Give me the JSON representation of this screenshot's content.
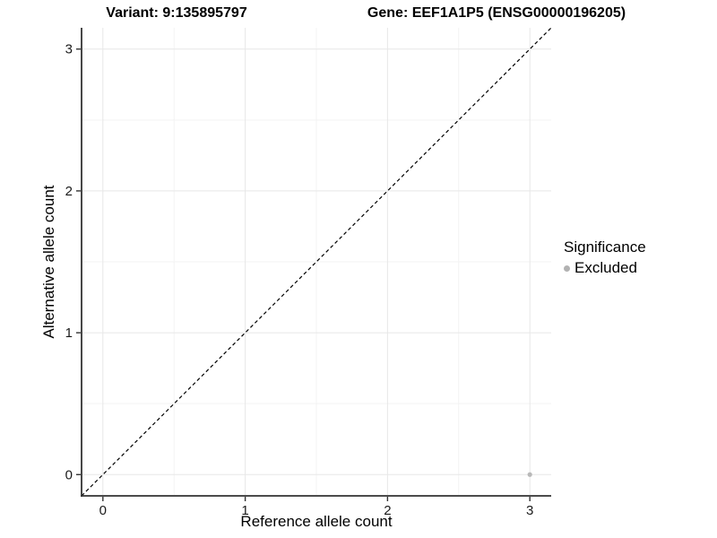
{
  "chart_data": {
    "type": "scatter",
    "titles": [
      "Variant: 9:135895797",
      "Gene: EEF1A1P5 (ENSG00000196205)"
    ],
    "xlabel": "Reference allele count",
    "ylabel": "Alternative allele count",
    "xlim": [
      -0.15,
      3.15
    ],
    "ylim": [
      -0.15,
      3.15
    ],
    "xticks": [
      0,
      1,
      2,
      3
    ],
    "yticks": [
      0,
      1,
      2,
      3
    ],
    "minor_gridlines_x": [
      0.5,
      1.5,
      2.5
    ],
    "minor_gridlines_y": [
      0.5,
      1.5,
      2.5
    ],
    "grid": "on",
    "identity_line": {
      "slope": 1,
      "intercept": 0,
      "style": "dashed",
      "color": "#000000"
    },
    "series": [
      {
        "name": "Excluded",
        "color": "#b9b9b9",
        "points": [
          {
            "x": 3,
            "y": 0
          }
        ]
      }
    ],
    "legend": {
      "title": "Significance",
      "position": "right",
      "entries": [
        {
          "label": "Excluded",
          "color": "#b2b2b2"
        }
      ]
    },
    "colors": {
      "background": "#ffffff",
      "grid_major": "#e7e7e7",
      "grid_minor": "#f3f3f3",
      "axis_line": "#333333",
      "tick_text": "#1a1a1a"
    }
  }
}
